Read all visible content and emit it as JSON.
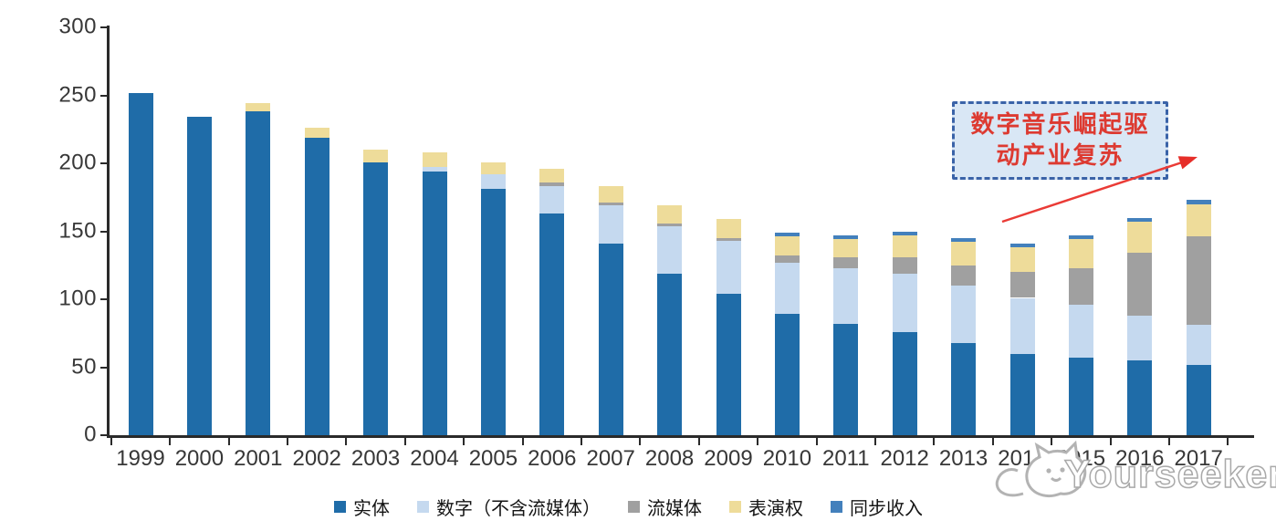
{
  "chart_data": {
    "type": "bar",
    "stacked": true,
    "title": "",
    "xlabel": "",
    "ylabel": "",
    "categories": [
      "1999",
      "2000",
      "2001",
      "2002",
      "2003",
      "2004",
      "2005",
      "2006",
      "2007",
      "2008",
      "2009",
      "2010",
      "2011",
      "2012",
      "2013",
      "2014",
      "2015",
      "2016",
      "2017"
    ],
    "series": [
      {
        "name": "实体",
        "color": "#1F6CA8",
        "values": [
          252,
          234,
          238,
          219,
          201,
          194,
          181,
          163,
          141,
          119,
          104,
          89,
          82,
          76,
          68,
          60,
          57,
          55,
          52
        ]
      },
      {
        "name": "数字（不含流媒体）",
        "color": "#C5D9EF",
        "values": [
          0,
          0,
          0,
          0,
          0,
          3,
          11,
          20,
          28,
          35,
          39,
          38,
          41,
          43,
          42,
          41,
          39,
          33,
          29
        ]
      },
      {
        "name": "流媒体",
        "color": "#A0A0A0",
        "values": [
          0,
          0,
          0,
          0,
          0,
          0,
          0,
          3,
          2,
          2,
          2,
          5,
          8,
          12,
          15,
          19,
          27,
          46,
          65
        ]
      },
      {
        "name": "表演权",
        "color": "#EEDC9A",
        "values": [
          0,
          0,
          6,
          7,
          9,
          11,
          9,
          10,
          12,
          13,
          14,
          14,
          13,
          16,
          17,
          18,
          21,
          23,
          24
        ]
      },
      {
        "name": "同步收入",
        "color": "#4380BC",
        "values": [
          0,
          0,
          0,
          0,
          0,
          0,
          0,
          0,
          0,
          0,
          0,
          3,
          3,
          3,
          3,
          3,
          3,
          3,
          3
        ]
      }
    ],
    "ylim": [
      0,
      300
    ],
    "yticks": [
      0,
      50,
      100,
      150,
      200,
      250,
      300
    ],
    "grid": false,
    "legend_position": "bottom"
  },
  "annotation": {
    "line1": "数字音乐崛起驱",
    "line2": "动产业复苏",
    "arrow_color": "#ea3b36"
  },
  "watermark": {
    "text": "Yourseeker",
    "logo": "cat-logo"
  },
  "colors": {
    "axis": "#2a2a2a",
    "tick_text": "#373737",
    "annotation_bg": "#d9e7f5",
    "annotation_border": "#3a63a8",
    "annotation_text": "#dd3a31"
  }
}
